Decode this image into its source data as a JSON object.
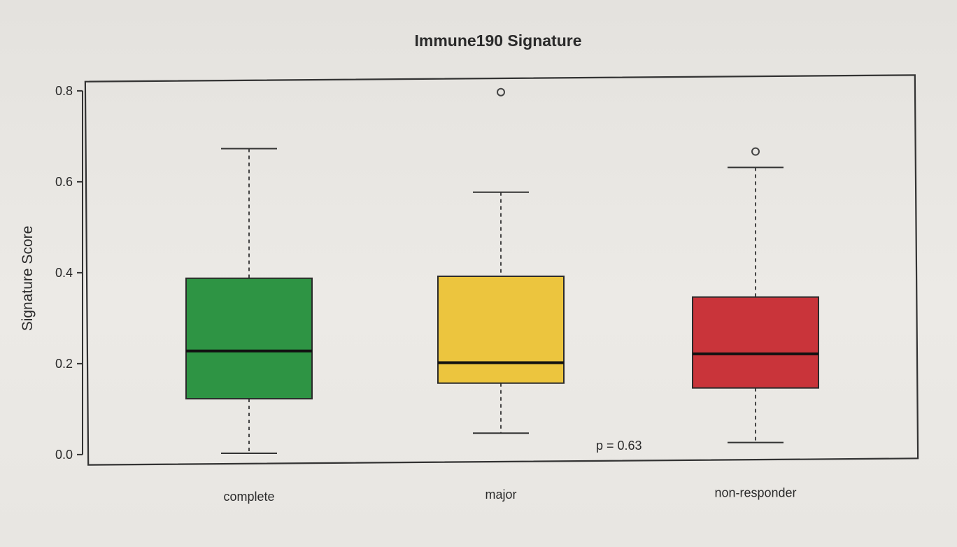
{
  "chart_data": {
    "type": "box",
    "title": "Immune190 Signature",
    "xlabel": "",
    "ylabel": "Signature Score",
    "ylim": [
      0.0,
      0.8
    ],
    "y_ticks": [
      "0.0",
      "0.2",
      "0.4",
      "0.6",
      "0.8"
    ],
    "y_tick_values": [
      0.0,
      0.2,
      0.4,
      0.6,
      0.8
    ],
    "categories": [
      "complete",
      "major",
      "non-responder"
    ],
    "boxes": [
      {
        "category": "complete",
        "color": "#2e9444",
        "whisker_low": 0.0,
        "q1": 0.12,
        "median": 0.225,
        "q3": 0.385,
        "whisker_high": 0.67,
        "outliers": []
      },
      {
        "category": "major",
        "color": "#ecc53e",
        "whisker_low": 0.04,
        "q1": 0.15,
        "median": 0.195,
        "q3": 0.385,
        "whisker_high": 0.57,
        "outliers": [
          0.79
        ]
      },
      {
        "category": "non-responder",
        "color": "#c9343a",
        "whisker_low": 0.015,
        "q1": 0.135,
        "median": 0.21,
        "q3": 0.335,
        "whisker_high": 0.62,
        "outliers": [
          0.655
        ]
      }
    ],
    "annotations": [
      {
        "text": "p = 0.63"
      }
    ],
    "grid": false,
    "legend": "none"
  }
}
